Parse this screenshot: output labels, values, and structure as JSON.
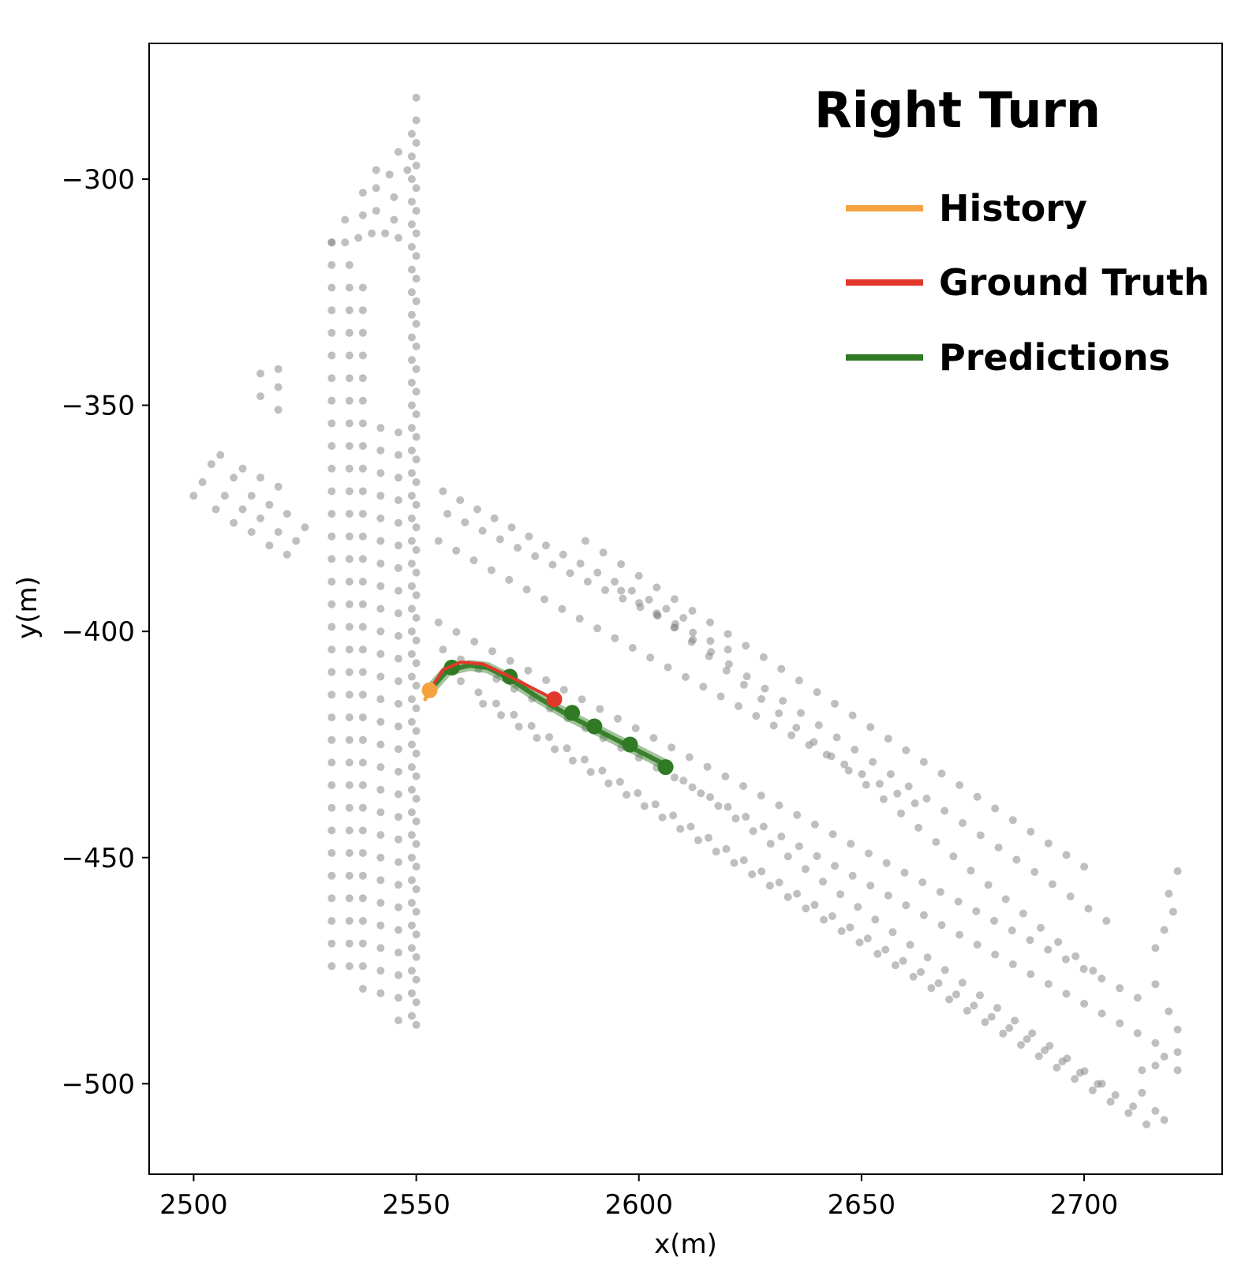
{
  "chart_data": {
    "type": "scatter",
    "title": "Right Turn",
    "xlabel": "x(m)",
    "ylabel": "y(m)",
    "xlim": [
      2490,
      2731
    ],
    "ylim": [
      -520,
      -270
    ],
    "xticks": [
      2500,
      2550,
      2600,
      2650,
      2700
    ],
    "yticks": [
      -300,
      -350,
      -400,
      -450,
      -500
    ],
    "xtick_labels": [
      "2500",
      "2550",
      "2600",
      "2650",
      "2700"
    ],
    "ytick_labels": [
      "−300",
      "−350",
      "−400",
      "−450",
      "−500"
    ],
    "grid": false,
    "legend_position": "top-right",
    "colors": {
      "map_points": "#8a8a8a",
      "history": "#f4a340",
      "ground_truth": "#e0392b",
      "predictions": "#2f7a22"
    },
    "legend": [
      {
        "key": "history",
        "label": "History"
      },
      {
        "key": "ground_truth",
        "label": "Ground Truth"
      },
      {
        "key": "predictions",
        "label": "Predictions"
      }
    ],
    "series": [
      {
        "name": "History",
        "type": "line",
        "x": [
          2552.0,
          2553.0
        ],
        "y": [
          -415.0,
          -413.0
        ]
      },
      {
        "name": "Ground Truth",
        "type": "line",
        "x": [
          2553,
          2556,
          2560,
          2565,
          2570,
          2575,
          2581
        ],
        "y": [
          -413,
          -408.5,
          -406.8,
          -407.2,
          -409.5,
          -412.0,
          -415.0
        ]
      },
      {
        "name": "Predictions",
        "type": "line",
        "x": [
          2553,
          2557,
          2562,
          2566,
          2571,
          2578,
          2585,
          2592,
          2599,
          2606
        ],
        "y": [
          -413,
          -408.6,
          -407.5,
          -408.0,
          -410.5,
          -415.0,
          -419.0,
          -422.5,
          -426.0,
          -429.5
        ],
        "markers": {
          "x": [
            2558,
            2571,
            2585,
            2590,
            2598,
            2606
          ],
          "y": [
            -408,
            -410,
            -418,
            -421,
            -425,
            -430
          ]
        }
      },
      {
        "name": "Endpoints",
        "type": "scatter",
        "points": [
          {
            "x": 2553,
            "y": -413,
            "kind": "history"
          },
          {
            "x": 2581,
            "y": -415,
            "kind": "ground_truth"
          }
        ]
      }
    ],
    "map_points": {
      "columns": [
        {
          "x": 2531,
          "y_start": -314,
          "y_end": -474,
          "step": 5
        },
        {
          "x": 2535,
          "y_start": -319,
          "y_end": -477,
          "step": 5
        },
        {
          "x": 2538,
          "y_start": -324,
          "y_end": -480,
          "step": 5
        },
        {
          "x": 2542,
          "y_start": -355,
          "y_end": -484,
          "step": 5
        },
        {
          "x": 2546,
          "y_start": -356,
          "y_end": -486,
          "step": 5
        },
        {
          "x": 2550,
          "y_start": -282,
          "y_end": -488,
          "step": 5
        },
        {
          "x": 2549,
          "y_start": -290,
          "y_end": -485,
          "step": 5
        }
      ],
      "upper_branch": [
        {
          "x": 2531,
          "y": -314
        },
        {
          "x": 2534,
          "y": -314
        },
        {
          "x": 2537,
          "y": -313
        },
        {
          "x": 2540,
          "y": -312
        },
        {
          "x": 2543,
          "y": -312
        },
        {
          "x": 2546,
          "y": -313
        },
        {
          "x": 2534,
          "y": -309
        },
        {
          "x": 2538,
          "y": -308
        },
        {
          "x": 2541,
          "y": -307
        },
        {
          "x": 2545,
          "y": -309
        },
        {
          "x": 2538,
          "y": -303
        },
        {
          "x": 2541,
          "y": -302
        },
        {
          "x": 2545,
          "y": -304
        },
        {
          "x": 2544,
          "y": -299
        },
        {
          "x": 2546,
          "y": -294
        },
        {
          "x": 2548,
          "y": -298
        },
        {
          "x": 2541,
          "y": -298
        }
      ],
      "left_branch": [
        {
          "x": 2500,
          "y": -370
        },
        {
          "x": 2502,
          "y": -367
        },
        {
          "x": 2504,
          "y": -363
        },
        {
          "x": 2506,
          "y": -361
        },
        {
          "x": 2505,
          "y": -373
        },
        {
          "x": 2507,
          "y": -370
        },
        {
          "x": 2509,
          "y": -366
        },
        {
          "x": 2511,
          "y": -364
        },
        {
          "x": 2509,
          "y": -376
        },
        {
          "x": 2511,
          "y": -373
        },
        {
          "x": 2513,
          "y": -370
        },
        {
          "x": 2515,
          "y": -366
        },
        {
          "x": 2513,
          "y": -378
        },
        {
          "x": 2515,
          "y": -375
        },
        {
          "x": 2517,
          "y": -372
        },
        {
          "x": 2519,
          "y": -368
        },
        {
          "x": 2517,
          "y": -381
        },
        {
          "x": 2519,
          "y": -378
        },
        {
          "x": 2521,
          "y": -374
        },
        {
          "x": 2521,
          "y": -383
        },
        {
          "x": 2523,
          "y": -380
        },
        {
          "x": 2525,
          "y": -377
        },
        {
          "x": 2515,
          "y": -343
        },
        {
          "x": 2515,
          "y": -348
        },
        {
          "x": 2519,
          "y": -342
        },
        {
          "x": 2519,
          "y": -346
        },
        {
          "x": 2519,
          "y": -351
        }
      ],
      "diagonal_lanes": [
        {
          "x0": 2556,
          "y0": -369,
          "x1": 2610,
          "y1": -397,
          "step": 4
        },
        {
          "x0": 2557,
          "y0": -374,
          "x1": 2620,
          "y1": -404,
          "step": 4
        },
        {
          "x0": 2555,
          "y0": -380,
          "x1": 2662,
          "y1": -438,
          "step": 4
        },
        {
          "x0": 2588,
          "y0": -380,
          "x1": 2700,
          "y1": -452,
          "step": 4
        },
        {
          "x0": 2596,
          "y0": -391,
          "x1": 2705,
          "y1": -464,
          "step": 4
        },
        {
          "x0": 2604,
          "y0": -396,
          "x1": 2702,
          "y1": -475,
          "step": 4
        },
        {
          "x0": 2555,
          "y0": -398,
          "x1": 2712,
          "y1": -481,
          "step": 4
        },
        {
          "x0": 2556,
          "y0": -404,
          "x1": 2716,
          "y1": -491,
          "step": 4
        },
        {
          "x0": 2560,
          "y0": -411,
          "x1": 2711,
          "y1": -505,
          "step": 4
        },
        {
          "x0": 2565,
          "y0": -416,
          "x1": 2714,
          "y1": -509,
          "step": 4
        },
        {
          "x0": 2610,
          "y0": -433,
          "x1": 2704,
          "y1": -500,
          "step": 4
        }
      ],
      "right_end": [
        {
          "x": 2716,
          "y": -470
        },
        {
          "x": 2718,
          "y": -466
        },
        {
          "x": 2720,
          "y": -462
        },
        {
          "x": 2719,
          "y": -458
        },
        {
          "x": 2721,
          "y": -453
        },
        {
          "x": 2716,
          "y": -478
        },
        {
          "x": 2719,
          "y": -484
        },
        {
          "x": 2721,
          "y": -488
        },
        {
          "x": 2721,
          "y": -493
        },
        {
          "x": 2721,
          "y": -497
        },
        {
          "x": 2718,
          "y": -494
        },
        {
          "x": 2716,
          "y": -496
        },
        {
          "x": 2718,
          "y": -508
        },
        {
          "x": 2716,
          "y": -506
        },
        {
          "x": 2713,
          "y": -497
        },
        {
          "x": 2713,
          "y": -502
        }
      ]
    }
  }
}
